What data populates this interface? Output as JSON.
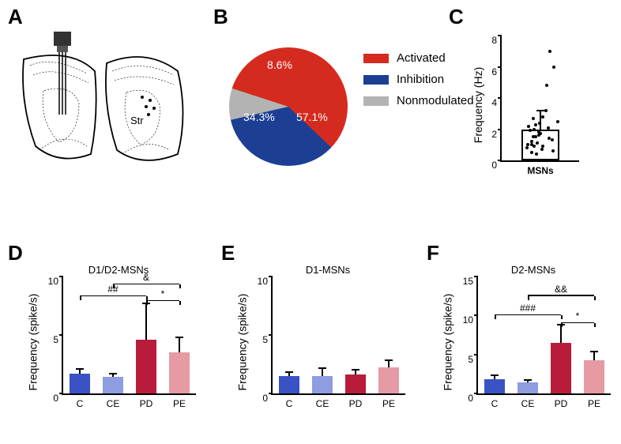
{
  "labels": {
    "A": "A",
    "B": "B",
    "C": "C",
    "D": "D",
    "E": "E",
    "F": "F"
  },
  "panelB": {
    "legend": [
      {
        "label": "Activated",
        "color": "#d52b1e"
      },
      {
        "label": "Inhibition",
        "color": "#1c3f94"
      },
      {
        "label": "Nonmodulated",
        "color": "#b3b3b3"
      }
    ],
    "slices": [
      {
        "label": "57.1%",
        "pct": 57.1,
        "color": "#d52b1e"
      },
      {
        "label": "34.3%",
        "pct": 34.3,
        "color": "#1c3f94"
      },
      {
        "label": "8.6%",
        "pct": 8.6,
        "color": "#b3b3b3"
      }
    ]
  },
  "panelC": {
    "ylabel": "Frequency (Hz)",
    "ymax": 8,
    "ystep": 2,
    "bar": {
      "label": "MSNs",
      "value": 2.0,
      "err": 1.2,
      "color": "#ffffff",
      "border": "#000"
    },
    "points": [
      1.0,
      1.2,
      0.8,
      1.5,
      2.0,
      0.5,
      1.8,
      2.3,
      1.1,
      0.9,
      1.6,
      2.8,
      3.2,
      0.7,
      1.4,
      2.1,
      4.8,
      6.0,
      7.0,
      1.3,
      2.5,
      0.6,
      1.9,
      1.0,
      2.2,
      1.5,
      0.9,
      2.7,
      1.7,
      0.4,
      2.4
    ]
  },
  "panelD": {
    "title": "D1/D2-MSNs",
    "ylabel": "Frequency (spike/s)",
    "ymax": 10,
    "ystep": 5,
    "bars": [
      {
        "label": "C",
        "value": 1.7,
        "err": 0.4,
        "color": "#3a53c4"
      },
      {
        "label": "CE",
        "value": 1.4,
        "err": 0.3,
        "color": "#8e9ce0"
      },
      {
        "label": "PD",
        "value": 4.6,
        "err": 3.1,
        "color": "#b81c3a"
      },
      {
        "label": "PE",
        "value": 3.5,
        "err": 1.3,
        "color": "#e59aa4"
      }
    ],
    "sigs": [
      {
        "from": 0,
        "to": 2,
        "text": "##",
        "y": 8.3
      },
      {
        "from": 1,
        "to": 3,
        "text": "&",
        "y": 9.3
      },
      {
        "from": 2,
        "to": 3,
        "text": "*",
        "y": 7.9,
        "short": true
      }
    ]
  },
  "panelE": {
    "title": "D1-MSNs",
    "ylabel": "Frequency (spike/s)",
    "ymax": 10,
    "ystep": 5,
    "bars": [
      {
        "label": "C",
        "value": 1.5,
        "err": 0.3,
        "color": "#3a53c4"
      },
      {
        "label": "CE",
        "value": 1.5,
        "err": 0.65,
        "color": "#8e9ce0"
      },
      {
        "label": "PD",
        "value": 1.6,
        "err": 0.4,
        "color": "#b81c3a"
      },
      {
        "label": "PE",
        "value": 2.2,
        "err": 0.65,
        "color": "#e59aa4"
      }
    ],
    "sigs": []
  },
  "panelF": {
    "title": "D2-MSNs",
    "ylabel": "Frequency (spike/s)",
    "ymax": 15,
    "ystep": 5,
    "bars": [
      {
        "label": "C",
        "value": 1.8,
        "err": 0.5,
        "color": "#3a53c4"
      },
      {
        "label": "CE",
        "value": 1.4,
        "err": 0.3,
        "color": "#8e9ce0"
      },
      {
        "label": "PD",
        "value": 6.5,
        "err": 2.3,
        "color": "#b81c3a"
      },
      {
        "label": "PE",
        "value": 4.3,
        "err": 1.1,
        "color": "#e59aa4"
      }
    ],
    "sigs": [
      {
        "from": 0,
        "to": 2,
        "text": "###",
        "y": 10.0
      },
      {
        "from": 1,
        "to": 3,
        "text": "&&",
        "y": 12.5
      },
      {
        "from": 2,
        "to": 3,
        "text": "*",
        "y": 9.0,
        "short": true
      }
    ]
  },
  "panelA": {
    "text": "Str"
  }
}
